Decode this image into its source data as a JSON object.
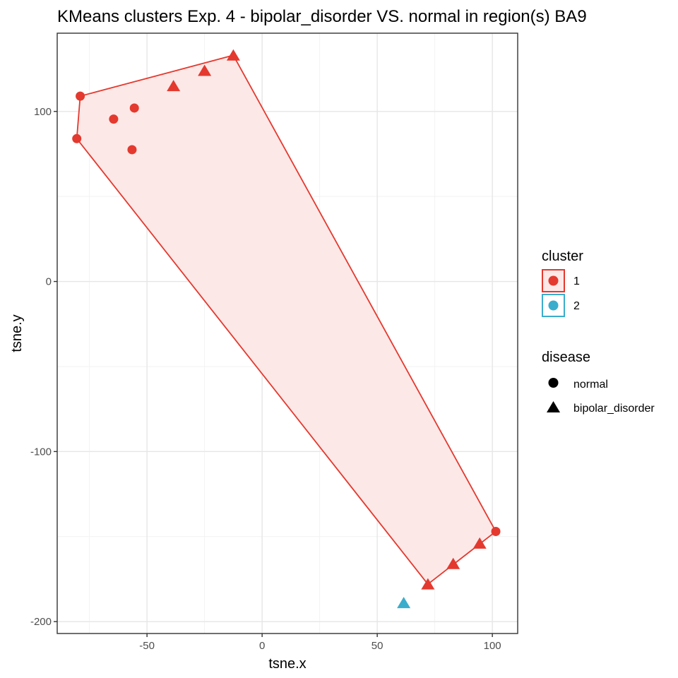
{
  "chart_data": {
    "type": "scatter",
    "title": "KMeans clusters Exp. 4 - bipolar_disorder VS. normal in region(s) BA9",
    "xlabel": "tsne.x",
    "ylabel": "tsne.y",
    "xlim": [
      -89,
      111
    ],
    "ylim": [
      -207,
      146
    ],
    "x_ticks": [
      -50,
      0,
      50,
      100
    ],
    "y_ticks": [
      -200,
      -100,
      0,
      100
    ],
    "x_tick_labels": [
      "-50",
      "0",
      "50",
      "100"
    ],
    "y_tick_labels": [
      "-200",
      "-100",
      "0",
      "100"
    ],
    "grid": true,
    "legend_position": "right",
    "legends": {
      "cluster": {
        "title": "cluster",
        "entries": [
          {
            "label": "1",
            "color": "#E4392E",
            "fill": "#FCE8E7"
          },
          {
            "label": "2",
            "color": "#3AADCC",
            "fill": "#FFFFFF"
          }
        ]
      },
      "disease": {
        "title": "disease",
        "entries": [
          {
            "label": "normal",
            "shape": "circle"
          },
          {
            "label": "bipolar_disorder",
            "shape": "triangle"
          }
        ]
      }
    },
    "points": [
      {
        "x": -79,
        "y": 109,
        "cluster": "1",
        "disease": "normal"
      },
      {
        "x": -80.5,
        "y": 84,
        "cluster": "1",
        "disease": "normal"
      },
      {
        "x": -64.5,
        "y": 95.5,
        "cluster": "1",
        "disease": "normal"
      },
      {
        "x": -55.5,
        "y": 102,
        "cluster": "1",
        "disease": "normal"
      },
      {
        "x": -56.5,
        "y": 77.5,
        "cluster": "1",
        "disease": "normal"
      },
      {
        "x": -38.5,
        "y": 115,
        "cluster": "1",
        "disease": "bipolar_disorder"
      },
      {
        "x": -25,
        "y": 124,
        "cluster": "1",
        "disease": "bipolar_disorder"
      },
      {
        "x": -12.5,
        "y": 133,
        "cluster": "1",
        "disease": "bipolar_disorder"
      },
      {
        "x": 101.5,
        "y": -147,
        "cluster": "1",
        "disease": "normal"
      },
      {
        "x": 94.5,
        "y": -154,
        "cluster": "1",
        "disease": "bipolar_disorder"
      },
      {
        "x": 83,
        "y": -166,
        "cluster": "1",
        "disease": "bipolar_disorder"
      },
      {
        "x": 72,
        "y": -178,
        "cluster": "1",
        "disease": "bipolar_disorder"
      },
      {
        "x": 61.5,
        "y": -189,
        "cluster": "2",
        "disease": "bipolar_disorder"
      }
    ],
    "hulls": [
      {
        "cluster": "1",
        "color": "#E4392E",
        "fill": "#FCE8E7",
        "points": [
          [
            -79,
            109
          ],
          [
            -12.5,
            133
          ],
          [
            101.5,
            -147
          ],
          [
            72,
            -178
          ],
          [
            -80.5,
            84
          ]
        ]
      }
    ]
  }
}
